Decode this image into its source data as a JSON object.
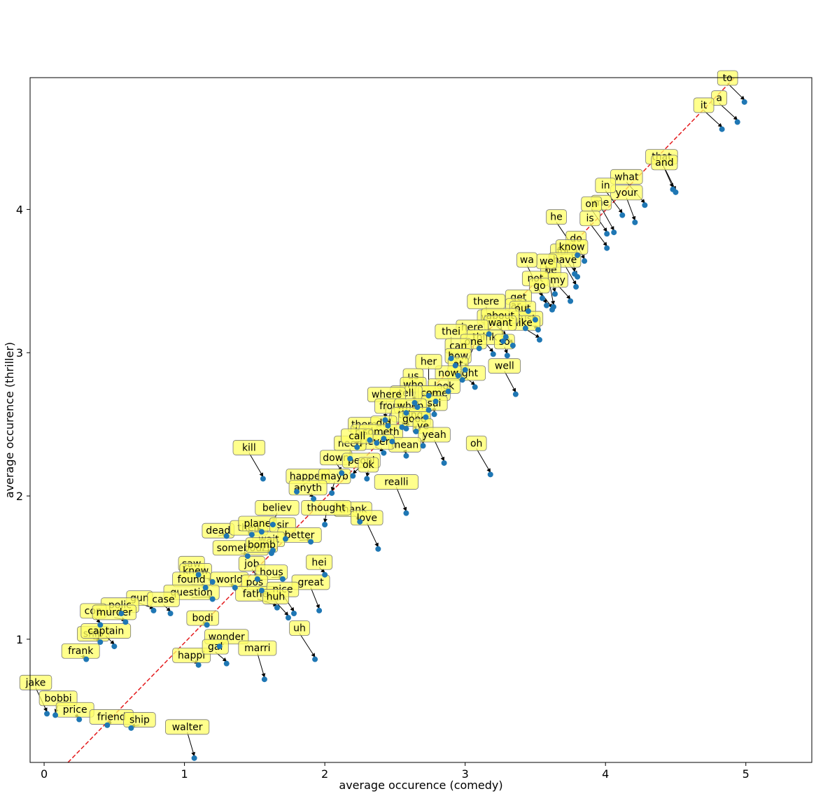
{
  "chart_data": {
    "type": "scatter",
    "title": "",
    "xlabel": "average occurence (comedy)",
    "ylabel": "average occurence (thriller)",
    "xlim": [
      -0.1,
      5.47
    ],
    "ylim": [
      0.14,
      4.92
    ],
    "xticks": [
      0,
      1,
      2,
      3,
      4,
      5
    ],
    "yticks": [
      1,
      2,
      3,
      4
    ],
    "reference_line": {
      "from": [
        0.17,
        0.14
      ],
      "to": [
        4.92,
        4.92
      ],
      "style": "dashed",
      "color": "#e41a1c"
    },
    "marker_color": "#1f77b4",
    "annotation_color": "#ffff66",
    "points": [
      {
        "label": "to",
        "x": 4.99,
        "y": 4.75,
        "lx": 4.87,
        "ly": 4.92
      },
      {
        "label": "a",
        "x": 4.94,
        "y": 4.61,
        "lx": 4.81,
        "ly": 4.78
      },
      {
        "label": "it",
        "x": 4.83,
        "y": 4.56,
        "lx": 4.7,
        "ly": 4.73
      },
      {
        "label": "that",
        "x": 4.48,
        "y": 4.14,
        "lx": 4.4,
        "ly": 4.37
      },
      {
        "label": "and",
        "x": 4.5,
        "y": 4.12,
        "lx": 4.42,
        "ly": 4.33
      },
      {
        "label": "what",
        "x": 4.28,
        "y": 4.03,
        "lx": 4.15,
        "ly": 4.23
      },
      {
        "label": "your",
        "x": 4.21,
        "y": 3.91,
        "lx": 4.15,
        "ly": 4.12
      },
      {
        "label": "in",
        "x": 4.12,
        "y": 3.96,
        "lx": 4.0,
        "ly": 4.17
      },
      {
        "label": "me",
        "x": 4.06,
        "y": 3.84,
        "lx": 3.97,
        "ly": 4.05
      },
      {
        "label": "on",
        "x": 4.01,
        "y": 3.83,
        "lx": 3.9,
        "ly": 4.04
      },
      {
        "label": "is",
        "x": 4.01,
        "y": 3.73,
        "lx": 3.89,
        "ly": 3.94
      },
      {
        "label": "he",
        "x": 3.8,
        "y": 3.68,
        "lx": 3.65,
        "ly": 3.95
      },
      {
        "label": "do",
        "x": 3.85,
        "y": 3.64,
        "lx": 3.79,
        "ly": 3.8
      },
      {
        "label": "for",
        "x": 3.8,
        "y": 3.53,
        "lx": 3.7,
        "ly": 3.71
      },
      {
        "label": "know",
        "x": 3.78,
        "y": 3.55,
        "lx": 3.76,
        "ly": 3.74
      },
      {
        "label": "have",
        "x": 3.79,
        "y": 3.46,
        "lx": 3.71,
        "ly": 3.65
      },
      {
        "label": "be",
        "x": 3.64,
        "y": 3.41,
        "lx": 3.61,
        "ly": 3.58
      },
      {
        "label": "we",
        "x": 3.63,
        "y": 3.32,
        "lx": 3.58,
        "ly": 3.64
      },
      {
        "label": "wa",
        "x": 3.55,
        "y": 3.38,
        "lx": 3.44,
        "ly": 3.65
      },
      {
        "label": "my",
        "x": 3.75,
        "y": 3.36,
        "lx": 3.66,
        "ly": 3.51
      },
      {
        "label": "not",
        "x": 3.58,
        "y": 3.33,
        "lx": 3.5,
        "ly": 3.52
      },
      {
        "label": "go",
        "x": 3.62,
        "y": 3.3,
        "lx": 3.53,
        "ly": 3.47
      },
      {
        "label": "get",
        "x": 3.45,
        "y": 3.29,
        "lx": 3.38,
        "ly": 3.39
      },
      {
        "label": "ar",
        "x": 3.43,
        "y": 3.17,
        "lx": 3.36,
        "ly": 3.33
      },
      {
        "label": "out",
        "x": 3.5,
        "y": 3.23,
        "lx": 3.41,
        "ly": 3.31
      },
      {
        "label": "just",
        "x": 3.52,
        "y": 3.16,
        "lx": 3.44,
        "ly": 3.24
      },
      {
        "label": "like",
        "x": 3.53,
        "y": 3.09,
        "lx": 3.42,
        "ly": 3.21
      },
      {
        "label": "there",
        "x": 3.17,
        "y": 3.13,
        "lx": 3.15,
        "ly": 3.36
      },
      {
        "label": "what",
        "x": 3.29,
        "y": 3.11,
        "lx": 3.2,
        "ly": 3.25
      },
      {
        "label": "about",
        "x": 3.27,
        "y": 3.08,
        "lx": 3.25,
        "ly": 3.26
      },
      {
        "label": "want",
        "x": 3.34,
        "y": 3.05,
        "lx": 3.25,
        "ly": 3.21
      },
      {
        "label": "here",
        "x": 3.1,
        "y": 3.03,
        "lx": 3.05,
        "ly": 3.18
      },
      {
        "label": "think",
        "x": 3.2,
        "y": 2.99,
        "lx": 3.14,
        "ly": 3.11
      },
      {
        "label": "so",
        "x": 3.3,
        "y": 2.98,
        "lx": 3.28,
        "ly": 3.08
      },
      {
        "label": "thei",
        "x": 2.9,
        "y": 2.96,
        "lx": 2.9,
        "ly": 3.15
      },
      {
        "label": "one",
        "x": 3.0,
        "y": 2.88,
        "lx": 3.06,
        "ly": 3.08
      },
      {
        "label": "can",
        "x": 2.93,
        "y": 2.91,
        "lx": 2.95,
        "ly": 3.05
      },
      {
        "label": "how",
        "x": 2.95,
        "y": 2.84,
        "lx": 2.95,
        "ly": 2.98
      },
      {
        "label": "at",
        "x": 2.98,
        "y": 2.81,
        "lx": 2.95,
        "ly": 2.92
      },
      {
        "label": "well",
        "x": 3.36,
        "y": 2.71,
        "lx": 3.28,
        "ly": 2.91
      },
      {
        "label": "right",
        "x": 3.07,
        "y": 2.76,
        "lx": 3.01,
        "ly": 2.86
      },
      {
        "label": "now",
        "x": 2.88,
        "y": 2.73,
        "lx": 2.88,
        "ly": 2.86
      },
      {
        "label": "her",
        "x": 2.74,
        "y": 2.7,
        "lx": 2.74,
        "ly": 2.94
      },
      {
        "label": "look",
        "x": 2.79,
        "y": 2.66,
        "lx": 2.85,
        "ly": 2.77
      },
      {
        "label": "us",
        "x": 2.66,
        "y": 2.62,
        "lx": 2.63,
        "ly": 2.84
      },
      {
        "label": "who",
        "x": 2.64,
        "y": 2.65,
        "lx": 2.63,
        "ly": 2.78
      },
      {
        "label": "see",
        "x": 2.74,
        "y": 2.6,
        "lx": 2.74,
        "ly": 2.72
      },
      {
        "label": "come",
        "x": 2.78,
        "y": 2.57,
        "lx": 2.78,
        "ly": 2.72
      },
      {
        "label": "tell",
        "x": 2.58,
        "y": 2.58,
        "lx": 2.58,
        "ly": 2.72
      },
      {
        "label": "sai",
        "x": 2.72,
        "y": 2.55,
        "lx": 2.78,
        "ly": 2.65
      },
      {
        "label": "where",
        "x": 2.43,
        "y": 2.53,
        "lx": 2.44,
        "ly": 2.71
      },
      {
        "label": "from",
        "x": 2.45,
        "y": 2.49,
        "lx": 2.47,
        "ly": 2.63
      },
      {
        "label": "when",
        "x": 2.55,
        "y": 2.48,
        "lx": 2.61,
        "ly": 2.63
      },
      {
        "label": "thing",
        "x": 2.58,
        "y": 2.47,
        "lx": 2.61,
        "ly": 2.57
      },
      {
        "label": "good",
        "x": 2.65,
        "y": 2.45,
        "lx": 2.64,
        "ly": 2.54
      },
      {
        "label": "ye",
        "x": 2.7,
        "y": 2.35,
        "lx": 2.7,
        "ly": 2.49
      },
      {
        "label": "yeah",
        "x": 2.85,
        "y": 2.23,
        "lx": 2.78,
        "ly": 2.43
      },
      {
        "label": "them",
        "x": 2.32,
        "y": 2.39,
        "lx": 2.28,
        "ly": 2.5
      },
      {
        "label": "did",
        "x": 2.42,
        "y": 2.4,
        "lx": 2.42,
        "ly": 2.51
      },
      {
        "label": "had",
        "x": 2.37,
        "y": 2.37,
        "lx": 2.28,
        "ly": 2.45
      },
      {
        "label": "someth",
        "x": 2.48,
        "y": 2.38,
        "lx": 2.4,
        "ly": 2.45
      },
      {
        "label": "mean",
        "x": 2.58,
        "y": 2.28,
        "lx": 2.57,
        "ly": 2.36
      },
      {
        "label": "never",
        "x": 2.42,
        "y": 2.3,
        "lx": 2.36,
        "ly": 2.38
      },
      {
        "label": "need",
        "x": 2.18,
        "y": 2.26,
        "lx": 2.18,
        "ly": 2.37
      },
      {
        "label": "call",
        "x": 2.23,
        "y": 2.34,
        "lx": 2.23,
        "ly": 2.42
      },
      {
        "label": "oh",
        "x": 3.18,
        "y": 2.15,
        "lx": 3.08,
        "ly": 2.37
      },
      {
        "label": "kill",
        "x": 1.56,
        "y": 2.12,
        "lx": 1.46,
        "ly": 2.34
      },
      {
        "label": "down",
        "x": 2.12,
        "y": 2.16,
        "lx": 2.08,
        "ly": 2.27
      },
      {
        "label": "peopl",
        "x": 2.2,
        "y": 2.14,
        "lx": 2.26,
        "ly": 2.25
      },
      {
        "label": "ok",
        "x": 2.3,
        "y": 2.12,
        "lx": 2.31,
        "ly": 2.22
      },
      {
        "label": "realli",
        "x": 2.58,
        "y": 1.88,
        "lx": 2.51,
        "ly": 2.1
      },
      {
        "label": "happen",
        "x": 1.8,
        "y": 2.03,
        "lx": 1.88,
        "ly": 2.14
      },
      {
        "label": "mayb",
        "x": 2.05,
        "y": 2.02,
        "lx": 2.07,
        "ly": 2.14
      },
      {
        "label": "anyth",
        "x": 1.92,
        "y": 1.98,
        "lx": 1.88,
        "ly": 2.06
      },
      {
        "label": "thank",
        "x": 2.25,
        "y": 1.82,
        "lx": 2.2,
        "ly": 1.91
      },
      {
        "label": "love",
        "x": 2.38,
        "y": 1.63,
        "lx": 2.3,
        "ly": 1.85
      },
      {
        "label": "thought",
        "x": 2.0,
        "y": 1.8,
        "lx": 2.01,
        "ly": 1.92
      },
      {
        "label": "believ",
        "x": 1.63,
        "y": 1.8,
        "lx": 1.66,
        "ly": 1.92
      },
      {
        "label": "dead",
        "x": 1.3,
        "y": 1.72,
        "lx": 1.24,
        "ly": 1.76
      },
      {
        "label": "their",
        "x": 1.48,
        "y": 1.73,
        "lx": 1.46,
        "ly": 1.78
      },
      {
        "label": "plane",
        "x": 1.55,
        "y": 1.75,
        "lx": 1.52,
        "ly": 1.81
      },
      {
        "label": "sir",
        "x": 1.72,
        "y": 1.7,
        "lx": 1.7,
        "ly": 1.8
      },
      {
        "label": "better",
        "x": 1.9,
        "y": 1.68,
        "lx": 1.82,
        "ly": 1.73
      },
      {
        "label": "wait",
        "x": 1.63,
        "y": 1.62,
        "lx": 1.6,
        "ly": 1.7
      },
      {
        "label": "somebodi",
        "x": 1.45,
        "y": 1.58,
        "lx": 1.4,
        "ly": 1.64
      },
      {
        "label": "bomb",
        "x": 1.62,
        "y": 1.6,
        "lx": 1.55,
        "ly": 1.66
      },
      {
        "label": "hei",
        "x": 2.0,
        "y": 1.45,
        "lx": 1.96,
        "ly": 1.54
      },
      {
        "label": "great",
        "x": 1.96,
        "y": 1.2,
        "lx": 1.9,
        "ly": 1.4
      },
      {
        "label": "saw",
        "x": 1.1,
        "y": 1.45,
        "lx": 1.05,
        "ly": 1.53
      },
      {
        "label": "knew",
        "x": 1.2,
        "y": 1.4,
        "lx": 1.08,
        "ly": 1.48
      },
      {
        "label": "job",
        "x": 1.52,
        "y": 1.42,
        "lx": 1.48,
        "ly": 1.53
      },
      {
        "label": "hous",
        "x": 1.7,
        "y": 1.42,
        "lx": 1.62,
        "ly": 1.47
      },
      {
        "label": "found",
        "x": 1.15,
        "y": 1.36,
        "lx": 1.05,
        "ly": 1.42
      },
      {
        "label": "world",
        "x": 1.36,
        "y": 1.36,
        "lx": 1.32,
        "ly": 1.42
      },
      {
        "label": "pos",
        "x": 1.55,
        "y": 1.34,
        "lx": 1.5,
        "ly": 1.4
      },
      {
        "label": "father",
        "x": 1.66,
        "y": 1.22,
        "lx": 1.52,
        "ly": 1.32
      },
      {
        "label": "nice",
        "x": 1.78,
        "y": 1.18,
        "lx": 1.7,
        "ly": 1.35
      },
      {
        "label": "huh",
        "x": 1.74,
        "y": 1.15,
        "lx": 1.65,
        "ly": 1.3
      },
      {
        "label": "question",
        "x": 1.2,
        "y": 1.28,
        "lx": 1.05,
        "ly": 1.33
      },
      {
        "label": "gun",
        "x": 0.78,
        "y": 1.2,
        "lx": 0.68,
        "ly": 1.29
      },
      {
        "label": "case",
        "x": 0.9,
        "y": 1.18,
        "lx": 0.85,
        "ly": 1.28
      },
      {
        "label": "polic",
        "x": 0.55,
        "y": 1.18,
        "lx": 0.54,
        "ly": 1.24
      },
      {
        "label": "cop",
        "x": 0.4,
        "y": 1.1,
        "lx": 0.35,
        "ly": 1.2
      },
      {
        "label": "murder",
        "x": 0.58,
        "y": 1.12,
        "lx": 0.5,
        "ly": 1.19
      },
      {
        "label": "bodi",
        "x": 1.16,
        "y": 1.1,
        "lx": 1.13,
        "ly": 1.15
      },
      {
        "label": "uh",
        "x": 1.93,
        "y": 0.86,
        "lx": 1.82,
        "ly": 1.08
      },
      {
        "label": "wonder",
        "x": 1.25,
        "y": 0.95,
        "lx": 1.3,
        "ly": 1.02
      },
      {
        "label": "ship",
        "x": 0.4,
        "y": 0.98,
        "lx": 0.35,
        "ly": 1.04
      },
      {
        "label": "captain",
        "x": 0.5,
        "y": 0.95,
        "lx": 0.44,
        "ly": 1.06
      },
      {
        "label": "happi",
        "x": 1.1,
        "y": 0.82,
        "lx": 1.05,
        "ly": 0.89
      },
      {
        "label": "gal",
        "x": 1.3,
        "y": 0.83,
        "lx": 1.22,
        "ly": 0.95
      },
      {
        "label": "marri",
        "x": 1.57,
        "y": 0.72,
        "lx": 1.52,
        "ly": 0.94
      },
      {
        "label": "frank",
        "x": 0.3,
        "y": 0.86,
        "lx": 0.26,
        "ly": 0.92
      },
      {
        "label": "jake",
        "x": 0.02,
        "y": 0.48,
        "lx": -0.06,
        "ly": 0.7
      },
      {
        "label": "bobbi",
        "x": 0.08,
        "y": 0.47,
        "lx": 0.1,
        "ly": 0.59
      },
      {
        "label": "price",
        "x": 0.25,
        "y": 0.44,
        "lx": 0.22,
        "ly": 0.51
      },
      {
        "label": "friend",
        "x": 0.45,
        "y": 0.4,
        "lx": 0.48,
        "ly": 0.46
      },
      {
        "label": "ship",
        "x": 0.62,
        "y": 0.38,
        "lx": 0.68,
        "ly": 0.44
      },
      {
        "label": "walter",
        "x": 1.07,
        "y": 0.17,
        "lx": 1.02,
        "ly": 0.39
      }
    ]
  }
}
